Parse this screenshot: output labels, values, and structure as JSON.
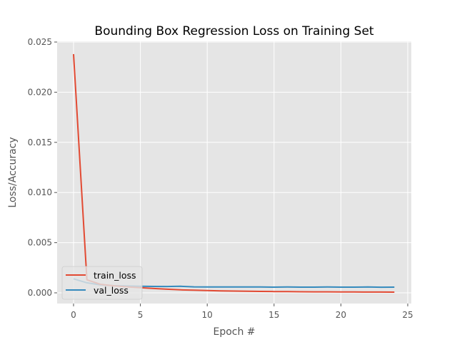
{
  "chart_data": {
    "type": "line",
    "title": "Bounding Box Regression Loss on Training Set",
    "xlabel": "Epoch #",
    "ylabel": "Loss/Accuracy",
    "xlim": [
      -1.2,
      25.3
    ],
    "ylim": [
      -0.0012,
      0.025
    ],
    "xticks": [
      0,
      5,
      10,
      15,
      20,
      25
    ],
    "xtick_labels": [
      "0",
      "5",
      "10",
      "15",
      "20",
      "25"
    ],
    "yticks": [
      0.0,
      0.005,
      0.01,
      0.015,
      0.02,
      0.025
    ],
    "ytick_labels": [
      "0.000",
      "0.005",
      "0.010",
      "0.015",
      "0.020",
      "0.025"
    ],
    "grid": true,
    "style": "ggplot",
    "legend_position": "lower left",
    "x": [
      0,
      1,
      2,
      3,
      4,
      5,
      6,
      7,
      8,
      9,
      10,
      11,
      12,
      13,
      14,
      15,
      16,
      17,
      18,
      19,
      20,
      21,
      22,
      23,
      24
    ],
    "series": [
      {
        "name": "train_loss",
        "color": "#E24A33",
        "values": [
          0.0238,
          0.0013,
          0.00085,
          0.0007,
          0.0006,
          0.00052,
          0.00043,
          0.00036,
          0.0003,
          0.00026,
          0.00023,
          0.0002,
          0.00018,
          0.00016,
          0.00014,
          0.00013,
          0.00012,
          0.00011,
          0.0001,
          0.0001,
          9e-05,
          9e-05,
          8e-05,
          8e-05,
          7e-05
        ]
      },
      {
        "name": "val_loss",
        "color": "#348ABD",
        "values": [
          0.0014,
          0.001,
          0.0008,
          0.00072,
          0.00068,
          0.00066,
          0.00064,
          0.00063,
          0.00065,
          0.0006,
          0.00058,
          0.00058,
          0.00058,
          0.00059,
          0.00059,
          0.00057,
          0.00058,
          0.00057,
          0.00057,
          0.00058,
          0.00057,
          0.00057,
          0.00058,
          0.00056,
          0.00057
        ]
      }
    ]
  }
}
